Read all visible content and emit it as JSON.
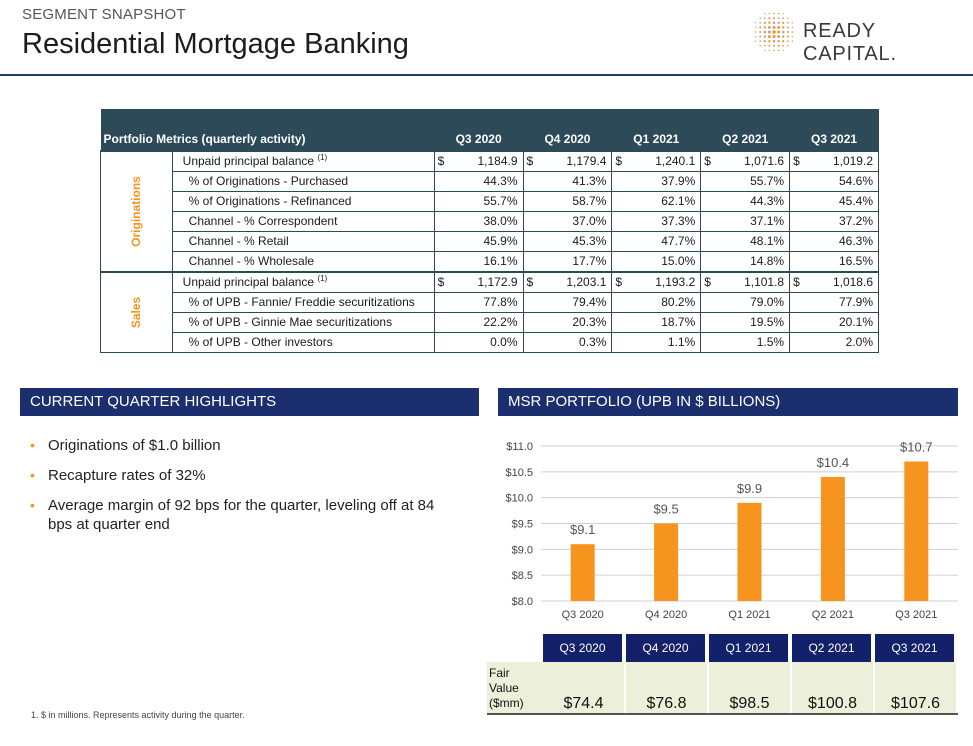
{
  "header": {
    "subtitle": "SEGMENT SNAPSHOT",
    "title": "Residential Mortgage Banking",
    "logo_text": "READY CAPITAL",
    "logo_trademark": "."
  },
  "metrics": {
    "title": "Portfolio Metrics (quarterly activity)",
    "columns": [
      "Q3 2020",
      "Q4 2020",
      "Q1 2021",
      "Q2 2021",
      "Q3 2021"
    ],
    "sections": [
      {
        "label": "Originations",
        "rows": [
          {
            "label": "Unpaid principal balance",
            "sup": "(1)",
            "dollar": true,
            "values": [
              "1,184.9",
              "1,179.4",
              "1,240.1",
              "1,071.6",
              "1,019.2"
            ]
          },
          {
            "label": "% of Originations - Purchased",
            "values": [
              "44.3%",
              "41.3%",
              "37.9%",
              "55.7%",
              "54.6%"
            ]
          },
          {
            "label": "% of Originations - Refinanced",
            "values": [
              "55.7%",
              "58.7%",
              "62.1%",
              "44.3%",
              "45.4%"
            ]
          },
          {
            "label": "Channel - % Correspondent",
            "values": [
              "38.0%",
              "37.0%",
              "37.3%",
              "37.1%",
              "37.2%"
            ]
          },
          {
            "label": "Channel - % Retail",
            "values": [
              "45.9%",
              "45.3%",
              "47.7%",
              "48.1%",
              "46.3%"
            ]
          },
          {
            "label": "Channel - % Wholesale",
            "values": [
              "16.1%",
              "17.7%",
              "15.0%",
              "14.8%",
              "16.5%"
            ]
          }
        ]
      },
      {
        "label": "Sales",
        "rows": [
          {
            "label": "Unpaid principal balance",
            "sup": "(1)",
            "dollar": true,
            "values": [
              "1,172.9",
              "1,203.1",
              "1,193.2",
              "1,101.8",
              "1,018.6"
            ]
          },
          {
            "label": "% of UPB - Fannie/ Freddie securitizations",
            "values": [
              "77.8%",
              "79.4%",
              "80.2%",
              "79.0%",
              "77.9%"
            ]
          },
          {
            "label": "% of UPB - Ginnie Mae securitizations",
            "values": [
              "22.2%",
              "20.3%",
              "18.7%",
              "19.5%",
              "20.1%"
            ]
          },
          {
            "label": "% of UPB - Other investors",
            "values": [
              "0.0%",
              "0.3%",
              "1.1%",
              "1.5%",
              "2.0%"
            ]
          }
        ]
      }
    ],
    "currency_symbol": "$"
  },
  "highlights": {
    "heading": "CURRENT QUARTER HIGHLIGHTS",
    "bullet_glyph": "•",
    "items": [
      "Originations of $1.0 billion",
      "Recapture rates of 32%",
      "Average margin of 92 bps for the quarter, leveling off at 84 bps at quarter end"
    ]
  },
  "msr": {
    "heading": "MSR PORTFOLIO (UPB IN $ BILLIONS)"
  },
  "chart_data": {
    "type": "bar",
    "categories": [
      "Q3 2020",
      "Q4 2020",
      "Q1 2021",
      "Q2 2021",
      "Q3 2021"
    ],
    "values": [
      9.1,
      9.5,
      9.9,
      10.4,
      10.7
    ],
    "data_labels": [
      "$9.1",
      "$9.5",
      "$9.9",
      "$10.4",
      "$10.7"
    ],
    "y_ticks": [
      "$11.0",
      "$10.5",
      "$10.0",
      "$9.5",
      "$9.0",
      "$8.5",
      "$8.0"
    ],
    "y_tick_values": [
      11.0,
      10.5,
      10.0,
      9.5,
      9.0,
      8.5,
      8.0
    ],
    "ylim": [
      8.0,
      11.0
    ],
    "bar_color": "#f7941d",
    "grid": true
  },
  "fair_value": {
    "label_lines": [
      "Fair",
      "Value",
      "($mm)"
    ],
    "columns": [
      "Q3 2020",
      "Q4 2020",
      "Q1 2021",
      "Q2 2021",
      "Q3 2021"
    ],
    "values": [
      "$74.4",
      "$76.8",
      "$98.5",
      "$100.8",
      "$107.6"
    ]
  },
  "footnote": "1. $ in millions. Represents activity during the quarter.",
  "colors": {
    "accent": "#f7941d",
    "table_header": "#2c4a57",
    "band": "#1b2f6e",
    "fair_value_header": "#12216a"
  }
}
